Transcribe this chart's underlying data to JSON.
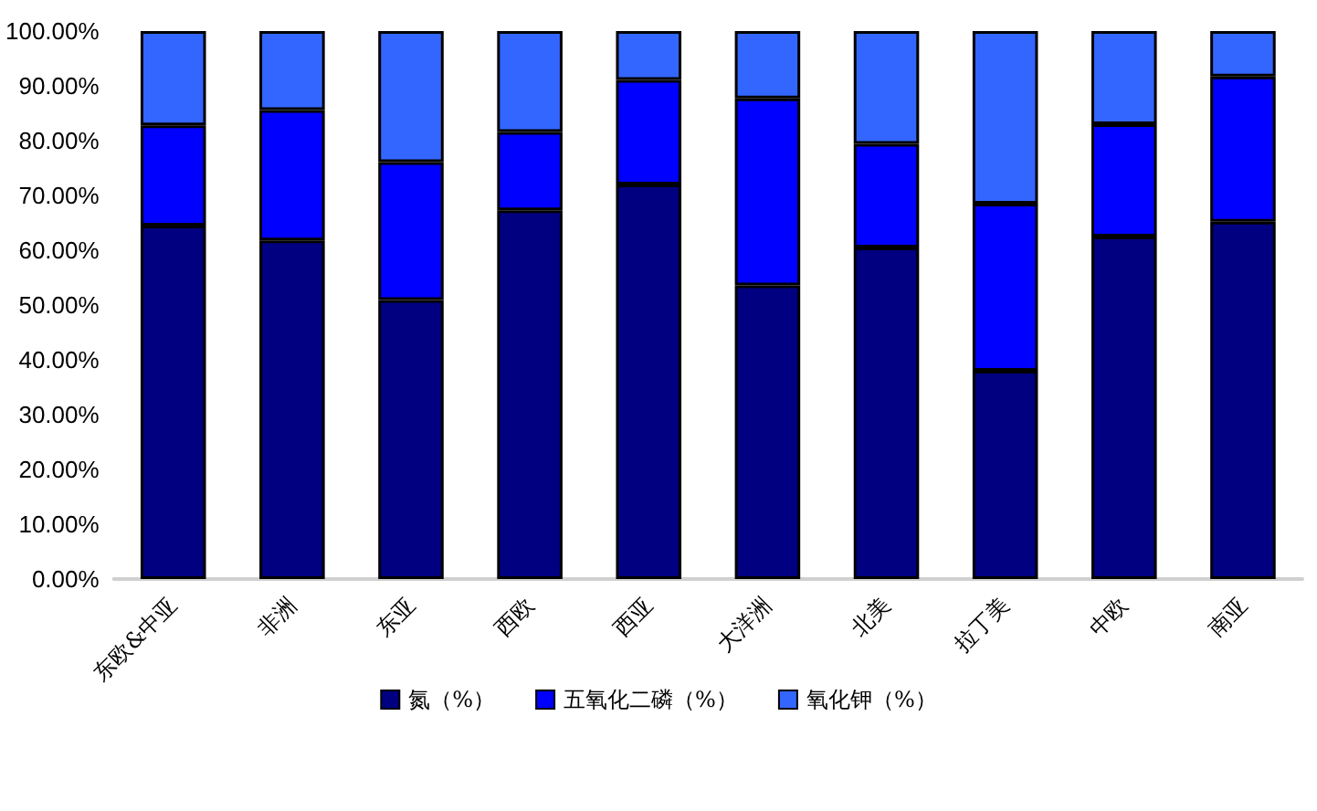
{
  "chart_data": {
    "type": "bar",
    "stacked": true,
    "categories": [
      "东欧&中亚",
      "非洲",
      "东亚",
      "西欧",
      "西亚",
      "大洋洲",
      "北美",
      "拉丁美",
      "中欧",
      "南亚"
    ],
    "series": [
      {
        "name": "氮（%）",
        "color": "#000080",
        "values": [
          64.5,
          61.8,
          50.9,
          67.3,
          72.0,
          53.6,
          60.5,
          38.0,
          62.5,
          65.2
        ]
      },
      {
        "name": "五氧化二磷（%）",
        "color": "#0000ff",
        "values": [
          18.3,
          23.8,
          25.2,
          14.3,
          19.1,
          34.1,
          18.9,
          30.5,
          20.5,
          26.5
        ]
      },
      {
        "name": "氧化钾（%）",
        "color": "#3366ff",
        "values": [
          17.2,
          14.4,
          23.9,
          18.4,
          8.9,
          12.3,
          20.6,
          31.5,
          17.0,
          8.3
        ]
      }
    ],
    "ylim": [
      0,
      100
    ],
    "yticks": [
      {
        "value": 0,
        "label": "0.00%"
      },
      {
        "value": 10,
        "label": "10.00%"
      },
      {
        "value": 20,
        "label": "20.00%"
      },
      {
        "value": 30,
        "label": "30.00%"
      },
      {
        "value": 40,
        "label": "40.00%"
      },
      {
        "value": 50,
        "label": "50.00%"
      },
      {
        "value": 60,
        "label": "60.00%"
      },
      {
        "value": 70,
        "label": "70.00%"
      },
      {
        "value": 80,
        "label": "80.00%"
      },
      {
        "value": 90,
        "label": "90.00%"
      },
      {
        "value": 100,
        "label": "100.00%"
      }
    ],
    "grid": false,
    "legend": "bottom"
  }
}
